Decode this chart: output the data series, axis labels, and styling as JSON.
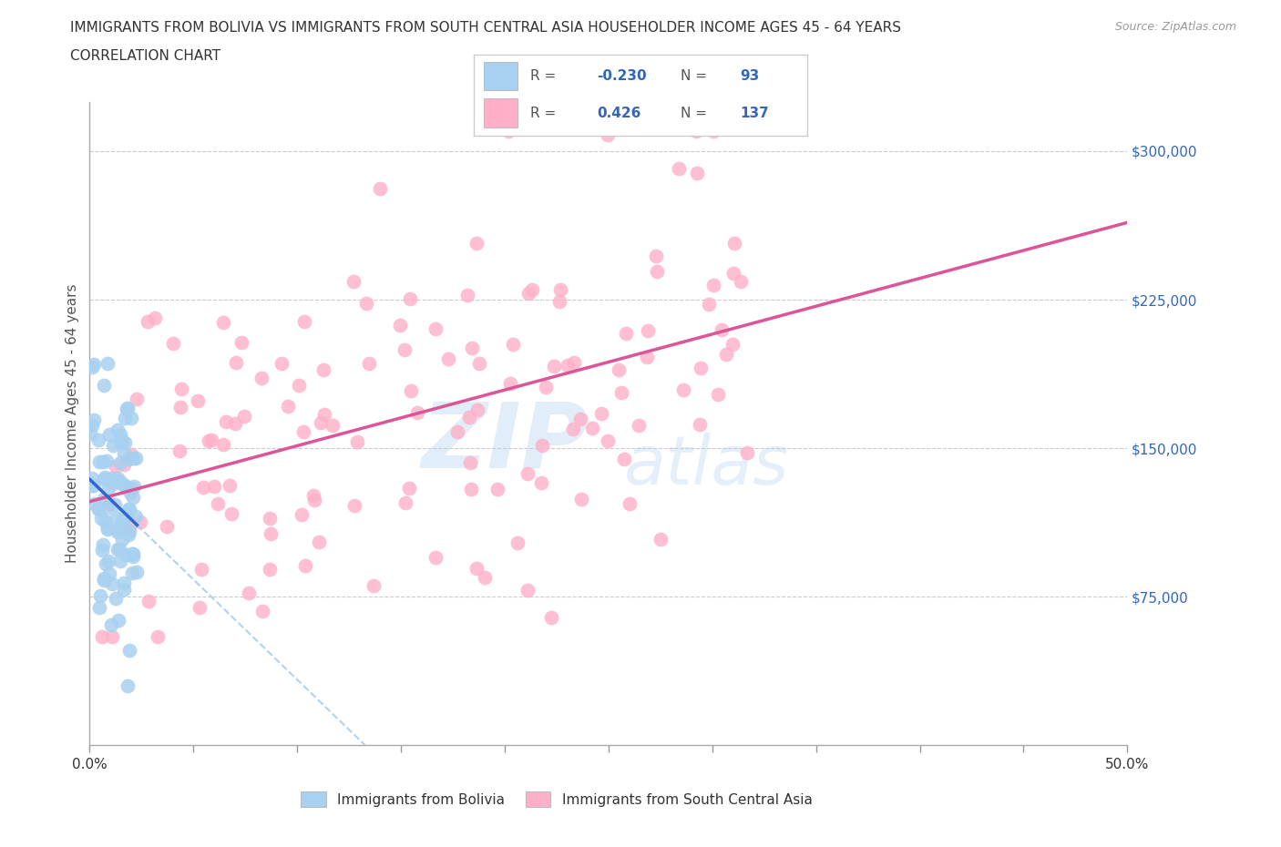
{
  "title_line1": "IMMIGRANTS FROM BOLIVIA VS IMMIGRANTS FROM SOUTH CENTRAL ASIA HOUSEHOLDER INCOME AGES 45 - 64 YEARS",
  "title_line2": "CORRELATION CHART",
  "source_text": "Source: ZipAtlas.com",
  "ylabel": "Householder Income Ages 45 - 64 years",
  "xlim": [
    0.0,
    0.5
  ],
  "ylim": [
    0,
    325000
  ],
  "ytick_labels": [
    "$75,000",
    "$150,000",
    "$225,000",
    "$300,000"
  ],
  "ytick_positions": [
    75000,
    150000,
    225000,
    300000
  ],
  "bolivia_color": "#A8D0F0",
  "bolivia_line_color": "#3366CC",
  "sca_color": "#FFB0C8",
  "sca_line_color": "#DD5599",
  "dash_color": "#AACCEE",
  "legend_R_color": "#3366BB",
  "bolivia_R": -0.23,
  "bolivia_N": 93,
  "sca_R": 0.426,
  "sca_N": 137
}
